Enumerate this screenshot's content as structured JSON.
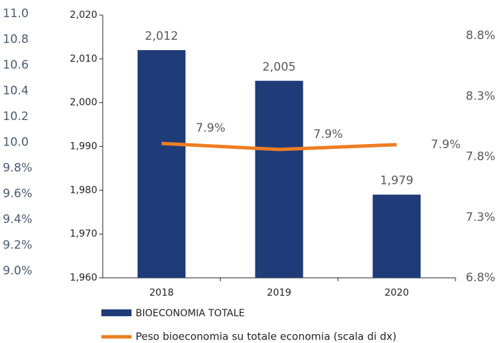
{
  "chart_data": {
    "type": "bar_line",
    "categories": [
      "2018",
      "2019",
      "2020"
    ],
    "series": [
      {
        "name": "BIOECONOMIA TOTALE",
        "type": "bar",
        "color": "#1f3c78",
        "values": [
          2012,
          2005,
          1979
        ],
        "value_labels": [
          "2,012",
          "2,005",
          "1,979"
        ]
      },
      {
        "name": "Peso bioeconomia su totale economia (scala di dx)",
        "type": "line",
        "axis": "y2",
        "color": "#ed7d22",
        "values": [
          7.91,
          7.86,
          7.9
        ],
        "value_labels": [
          "7.9%",
          "7.9%",
          "7.9%"
        ]
      }
    ],
    "ylim": [
      1960,
      2020
    ],
    "yticks": [
      {
        "value": 1960,
        "label": "1,960"
      },
      {
        "value": 1970,
        "label": "1,970"
      },
      {
        "value": 1980,
        "label": "1,980"
      },
      {
        "value": 1990,
        "label": "1,990"
      },
      {
        "value": 2000,
        "label": "2,000"
      },
      {
        "value": 2010,
        "label": "2,010"
      },
      {
        "value": 2020,
        "label": "2,020"
      }
    ],
    "y2lim": [
      6.8,
      8.8
    ],
    "y2ticks": [
      {
        "value": 6.8,
        "label": "6.8%"
      },
      {
        "value": 7.3,
        "label": "7.3%"
      },
      {
        "value": 7.8,
        "label": "7.8%"
      },
      {
        "value": 8.3,
        "label": "8.3%"
      },
      {
        "value": 8.8,
        "label": "8.8%"
      }
    ],
    "y3lim": [
      9.0,
      11.0
    ],
    "y3ticks": [
      {
        "value": 9.0,
        "label": "9.0%"
      },
      {
        "value": 9.2,
        "label": "9.2%"
      },
      {
        "value": 9.4,
        "label": "9.4%"
      },
      {
        "value": 9.6,
        "label": "9.6%"
      },
      {
        "value": 9.8,
        "label": "9.8%"
      },
      {
        "value": 10.0,
        "label": "10.0"
      },
      {
        "value": 10.2,
        "label": "10.2"
      },
      {
        "value": 10.4,
        "label": "10.4"
      },
      {
        "value": 10.6,
        "label": "10.6"
      },
      {
        "value": 10.8,
        "label": "10.8"
      },
      {
        "value": 11.0,
        "label": "11.0"
      }
    ],
    "grid": false
  }
}
